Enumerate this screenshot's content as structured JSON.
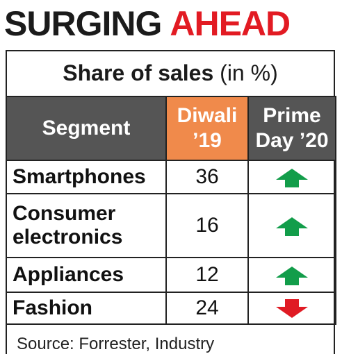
{
  "headline": {
    "part1": "SURGING",
    "part2": "AHEAD"
  },
  "subtitle": {
    "bold": "Share of sales",
    "rest": " (in %)"
  },
  "colors": {
    "headline_dark": "#1b1b1b",
    "headline_red": "#e21b23",
    "header_bg": "#555555",
    "highlight_bg": "#f08a4b",
    "arrow_up": "#129d4a",
    "arrow_down": "#e01b24"
  },
  "columns": {
    "segment": "Segment",
    "diwali_line1": "Diwali",
    "diwali_line2": "’19",
    "prime_line1": "Prime",
    "prime_line2": "Day ’20"
  },
  "chart_data": {
    "type": "table",
    "title": "SURGING AHEAD",
    "subtitle": "Share of sales (in %)",
    "columns": [
      "Segment",
      "Diwali ’19",
      "Prime Day ’20"
    ],
    "rows": [
      {
        "segment": "Smartphones",
        "segment_lines": [
          "Smartphones"
        ],
        "diwali_19": 36,
        "prime_day_20": "up",
        "arrow_icon": "up-arrow-icon"
      },
      {
        "segment": "Consumer electronics",
        "segment_lines": [
          "Consumer",
          "electronics"
        ],
        "diwali_19": 16,
        "prime_day_20": "up",
        "arrow_icon": "up-arrow-icon"
      },
      {
        "segment": "Appliances",
        "segment_lines": [
          "Appliances"
        ],
        "diwali_19": 12,
        "prime_day_20": "up",
        "arrow_icon": "up-arrow-icon"
      },
      {
        "segment": "Fashion",
        "segment_lines": [
          "Fashion"
        ],
        "diwali_19": 24,
        "prime_day_20": "down",
        "arrow_icon": "down-arrow-icon"
      }
    ]
  },
  "source": "Source: Forrester, Industry"
}
